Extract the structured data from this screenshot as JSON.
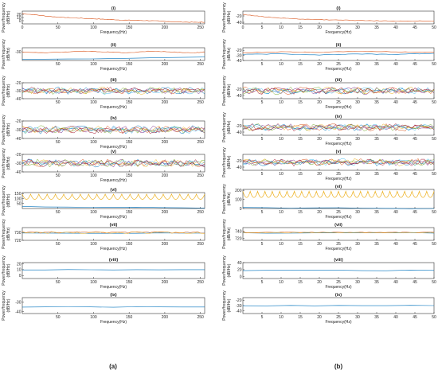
{
  "figure_labels": {
    "a": "(a)",
    "b": "(b)"
  },
  "colors": {
    "blue": "#0072BD",
    "orange": "#D95319",
    "yellow": "#EDB120",
    "purple": "#7E2F8E",
    "green": "#77AC30",
    "cyan": "#4DBEEE",
    "red": "#A2142F"
  },
  "chart_data": [
    {
      "type": "line",
      "column": "a",
      "title": "(i)",
      "xlabel": "Frequency(Hz)",
      "ylabel": [
        "Power/frequency",
        "(dB/Hz)"
      ],
      "xlim": [
        0,
        256
      ],
      "xticks": [
        0,
        50,
        100,
        150,
        200,
        250
      ],
      "ylim": [
        -10,
        30
      ],
      "yticks": [
        20,
        10,
        0
      ],
      "series": [
        {
          "color": "orange",
          "x": [
            0,
            20,
            40,
            60,
            80,
            100,
            120,
            140,
            160,
            180,
            200,
            220,
            240,
            256
          ],
          "y": [
            22,
            18,
            13,
            10,
            8,
            6,
            4,
            2,
            1,
            0,
            -2,
            -4,
            -5,
            -5
          ]
        }
      ]
    },
    {
      "type": "line",
      "column": "a",
      "title": "(ii)",
      "xlabel": "Frequency(Hz)",
      "ylabel": [
        "Power/frequency",
        "(dB/Hz)"
      ],
      "xlim": [
        0,
        256
      ],
      "xticks": [
        50,
        100,
        150,
        200,
        250
      ],
      "ylim": [
        -40,
        -25
      ],
      "yticks": [
        -30
      ],
      "series": [
        {
          "color": "orange",
          "x": [
            0,
            30,
            60,
            90,
            120,
            150,
            180,
            210,
            240,
            256
          ],
          "y": [
            -30,
            -31,
            -30,
            -29,
            -30,
            -31,
            -29,
            -30,
            -31,
            -30
          ]
        },
        {
          "color": "blue",
          "x": [
            0,
            256
          ],
          "y": [
            -39,
            -36
          ]
        }
      ]
    },
    {
      "type": "line",
      "column": "a",
      "title": "(iii)",
      "xlabel": "",
      "ylabel": [
        "Power/frequency",
        "(dB/Hz)"
      ],
      "xlim": [
        0,
        256
      ],
      "xticks": [
        50,
        100,
        150,
        200,
        250
      ],
      "ylim": [
        -40,
        -20
      ],
      "yticks": [
        -20,
        -30,
        -40
      ],
      "band": true,
      "series": [
        {
          "color": "blue",
          "x": [
            0,
            256
          ],
          "y": [
            -30,
            -30
          ]
        }
      ]
    },
    {
      "type": "line",
      "column": "a",
      "title": "(iv)",
      "xlabel": "",
      "ylabel": [
        "Power/frequency",
        "(dB/Hz)"
      ],
      "xlim": [
        0,
        256
      ],
      "xticks": [
        50,
        100,
        150,
        200,
        250
      ],
      "ylim": [
        -40,
        -20
      ],
      "yticks": [
        -20,
        -30,
        -40
      ],
      "band": true,
      "series": [
        {
          "color": "blue",
          "x": [
            0,
            256
          ],
          "y": [
            -30,
            -30
          ]
        }
      ]
    },
    {
      "type": "line",
      "column": "a",
      "title": "(v)",
      "xlabel": "",
      "ylabel": [
        "Power/frequency",
        "(dB/Hz)"
      ],
      "xlim": [
        0,
        256
      ],
      "xticks": [
        50,
        100,
        150,
        200,
        250
      ],
      "ylim": [
        -40,
        -20
      ],
      "yticks": [
        -20,
        -30,
        -40
      ],
      "band": true,
      "series": [
        {
          "color": "blue",
          "x": [
            0,
            256
          ],
          "y": [
            -30,
            -30
          ]
        }
      ]
    },
    {
      "type": "line",
      "column": "a",
      "title": "(vi)",
      "xlabel": "",
      "ylabel": [
        "Power/frequency",
        "(dB/Hz)"
      ],
      "xlim": [
        0,
        256
      ],
      "xticks": [
        50,
        100,
        150,
        200,
        250
      ],
      "ylim": [
        0,
        160
      ],
      "yticks": [
        150,
        100,
        50
      ],
      "periodic": true,
      "series": [
        {
          "color": "blue",
          "x": [
            0,
            256
          ],
          "y": [
            20,
            5
          ]
        }
      ]
    },
    {
      "type": "line",
      "column": "a",
      "title": "(vii)",
      "xlabel": "",
      "ylabel": [
        "Power/frequency",
        "(dB/Hz)"
      ],
      "xlim": [
        0,
        256
      ],
      "xticks": [
        50,
        100,
        150,
        200,
        250
      ],
      "ylim": [
        720,
        736
      ],
      "yticks": [
        730,
        720
      ],
      "series": [
        {
          "color": "blue",
          "x": [
            0,
            256
          ],
          "y": [
            729,
            729
          ]
        }
      ]
    },
    {
      "type": "line",
      "column": "a",
      "title": "(viii)",
      "xlabel": "",
      "ylabel": [
        "Power/frequency",
        "(dB/Hz)"
      ],
      "xlim": [
        0,
        256
      ],
      "xticks": [
        50,
        100,
        150,
        200,
        250
      ],
      "ylim": [
        -5,
        22
      ],
      "yticks": [
        20,
        10,
        0
      ],
      "series": [
        {
          "color": "blue",
          "x": [
            0,
            256
          ],
          "y": [
            10,
            10
          ]
        }
      ]
    },
    {
      "type": "line",
      "column": "a",
      "title": "(ix)",
      "xlabel": "Frequency(Hz)",
      "ylabel": [
        "Power/frequency",
        "(dB/Hz)"
      ],
      "xlim": [
        0,
        256
      ],
      "xticks": [
        50,
        100,
        150,
        200,
        250
      ],
      "ylim": [
        -42,
        -25
      ],
      "yticks": [
        -30,
        -40
      ],
      "series": [
        {
          "color": "blue",
          "x": [
            0,
            256
          ],
          "y": [
            -35,
            -35
          ]
        }
      ]
    },
    {
      "type": "line",
      "column": "b",
      "title": "(i)",
      "xlabel": "Frequency(Hz)",
      "ylabel": [
        "Power/frequency",
        "(dB/Hz)"
      ],
      "xlim": [
        0,
        50
      ],
      "xticks": [
        0,
        5,
        10,
        15,
        20,
        25,
        30,
        35,
        40,
        45,
        50
      ],
      "ylim": [
        -45,
        -5
      ],
      "yticks": [
        -20,
        -40
      ],
      "series": [
        {
          "color": "orange",
          "x": [
            0,
            5,
            10,
            15,
            20,
            25,
            30,
            35,
            40,
            45,
            50
          ],
          "y": [
            -15,
            -22,
            -27,
            -30,
            -32,
            -33,
            -34,
            -35,
            -36,
            -36,
            -36
          ]
        }
      ]
    },
    {
      "type": "line",
      "column": "b",
      "title": "(ii)",
      "xlabel": "Frequency(Hz)",
      "ylabel": [
        "Power/frequency",
        "(dB/Hz)"
      ],
      "xlim": [
        0,
        50
      ],
      "xticks": [
        5,
        10,
        15,
        20,
        25,
        30,
        35,
        40,
        45,
        50
      ],
      "ylim": [
        -40,
        -15
      ],
      "yticks": [
        -20,
        -30,
        -40
      ],
      "series": [
        {
          "color": "orange",
          "x": [
            0,
            10,
            20,
            30,
            40,
            50
          ],
          "y": [
            -25,
            -23,
            -24,
            -22,
            -23,
            -24
          ]
        },
        {
          "color": "blue",
          "x": [
            0,
            10,
            20,
            30,
            40,
            50
          ],
          "y": [
            -28,
            -27,
            -29,
            -27,
            -28,
            -26
          ]
        }
      ]
    },
    {
      "type": "line",
      "column": "b",
      "title": "(iii)",
      "xlabel": "",
      "ylabel": [
        "Power/frequency",
        "(dB/Hz)"
      ],
      "xlim": [
        0,
        50
      ],
      "xticks": [
        5,
        10,
        15,
        20,
        25,
        30,
        35,
        40,
        45,
        50
      ],
      "ylim": [
        -50,
        0
      ],
      "yticks": [
        -20,
        -40
      ],
      "band": true,
      "series": [
        {
          "color": "blue",
          "x": [
            0,
            50
          ],
          "y": [
            -25,
            -25
          ]
        }
      ]
    },
    {
      "type": "line",
      "column": "b",
      "title": "(iv)",
      "xlabel": "",
      "ylabel": [
        "Power/frequency",
        "(dB/Hz)"
      ],
      "xlim": [
        0,
        50
      ],
      "xticks": [
        5,
        10,
        15,
        20,
        25,
        30,
        35,
        40,
        45,
        50
      ],
      "ylim": [
        -50,
        0
      ],
      "yticks": [
        -20,
        -40
      ],
      "band": true,
      "series": [
        {
          "color": "blue",
          "x": [
            0,
            50
          ],
          "y": [
            -25,
            -25
          ]
        }
      ]
    },
    {
      "type": "line",
      "column": "b",
      "title": "(v)",
      "xlabel": "",
      "ylabel": [
        "Power/frequency",
        "(dB/Hz)"
      ],
      "xlim": [
        0,
        50
      ],
      "xticks": [
        5,
        10,
        15,
        20,
        25,
        30,
        35,
        40,
        45,
        50
      ],
      "ylim": [
        -50,
        0
      ],
      "yticks": [
        -20,
        -40
      ],
      "band": true,
      "series": [
        {
          "color": "blue",
          "x": [
            0,
            50
          ],
          "y": [
            -25,
            -25
          ]
        }
      ]
    },
    {
      "type": "line",
      "column": "b",
      "title": "(vi)",
      "xlabel": "",
      "ylabel": [
        "Power/frequency",
        "(dB/Hz)"
      ],
      "xlim": [
        0,
        50
      ],
      "xticks": [
        5,
        10,
        15,
        20,
        25,
        30,
        35,
        40,
        45,
        50
      ],
      "ylim": [
        0,
        210
      ],
      "yticks": [
        200,
        100,
        0
      ],
      "periodic": true,
      "series": [
        {
          "color": "blue",
          "x": [
            0,
            50
          ],
          "y": [
            10,
            0
          ]
        }
      ]
    },
    {
      "type": "line",
      "column": "b",
      "title": "(vii)",
      "xlabel": "",
      "ylabel": [
        "Power/frequency",
        "(dB/Hz)"
      ],
      "xlim": [
        0,
        50
      ],
      "xticks": [
        5,
        10,
        15,
        20,
        25,
        30,
        35,
        40,
        45,
        50
      ],
      "ylim": [
        715,
        750
      ],
      "yticks": [
        740,
        720
      ],
      "series": [
        {
          "color": "blue",
          "x": [
            0,
            50
          ],
          "y": [
            735,
            735
          ]
        }
      ]
    },
    {
      "type": "line",
      "column": "b",
      "title": "(viii)",
      "xlabel": "",
      "ylabel": [
        "Power/frequency",
        "(dB/Hz)"
      ],
      "xlim": [
        0,
        50
      ],
      "xticks": [
        5,
        10,
        15,
        20,
        25,
        30,
        35,
        40,
        45,
        50
      ],
      "ylim": [
        -5,
        40
      ],
      "yticks": [
        40,
        20,
        0
      ],
      "series": [
        {
          "color": "blue",
          "x": [
            0,
            50
          ],
          "y": [
            18,
            18
          ]
        }
      ]
    },
    {
      "type": "line",
      "column": "b",
      "title": "(ix)",
      "xlabel": "Frequency(Hz)",
      "ylabel": [
        "Power/frequency",
        "(dB/Hz)"
      ],
      "xlim": [
        0,
        50
      ],
      "xticks": [
        5,
        10,
        15,
        20,
        25,
        30,
        35,
        40,
        45,
        50
      ],
      "ylim": [
        -45,
        -15
      ],
      "yticks": [
        -20,
        -30,
        -40
      ],
      "series": [
        {
          "color": "blue",
          "x": [
            0,
            50
          ],
          "y": [
            -30,
            -30
          ]
        }
      ]
    }
  ]
}
